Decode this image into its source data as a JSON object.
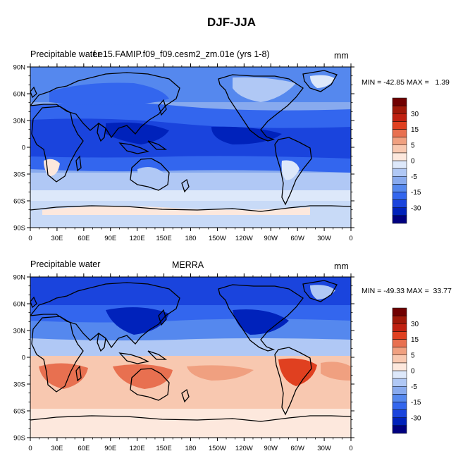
{
  "figure": {
    "title": "DJF-JJA",
    "units": "mm",
    "x_ticks": [
      "0",
      "30E",
      "60E",
      "90E",
      "120E",
      "150E",
      "180",
      "150W",
      "120W",
      "90W",
      "60W",
      "30W",
      "0"
    ],
    "y_ticks": [
      "90N",
      "60N",
      "30N",
      "0",
      "30S",
      "60S",
      "90S"
    ]
  },
  "colorbar": {
    "colors": [
      "#000080",
      "#0022bb",
      "#1a44dd",
      "#3366ee",
      "#5588ee",
      "#88aaee",
      "#b0c8f5",
      "#dde8fa",
      "#fde8dd",
      "#f8c8b0",
      "#f0a080",
      "#e87050",
      "#e04020",
      "#c02010",
      "#a01808",
      "#700000"
    ],
    "labels": [
      "30",
      "15",
      "5",
      "0",
      "-5",
      "-15",
      "-30"
    ]
  },
  "panels": [
    {
      "left_label": "Precipitable water",
      "center_label": "f.e15.FAMIP.f09_f09.cesm2_zm.01e (yrs 1-8)",
      "right_label": "mm",
      "stats": "MIN = -42.85 MAX =   1.39"
    },
    {
      "left_label": "Precipitable water",
      "center_label": "MERRA",
      "right_label": "mm",
      "stats": "MIN = -49.33 MAX =  33.77"
    }
  ]
}
